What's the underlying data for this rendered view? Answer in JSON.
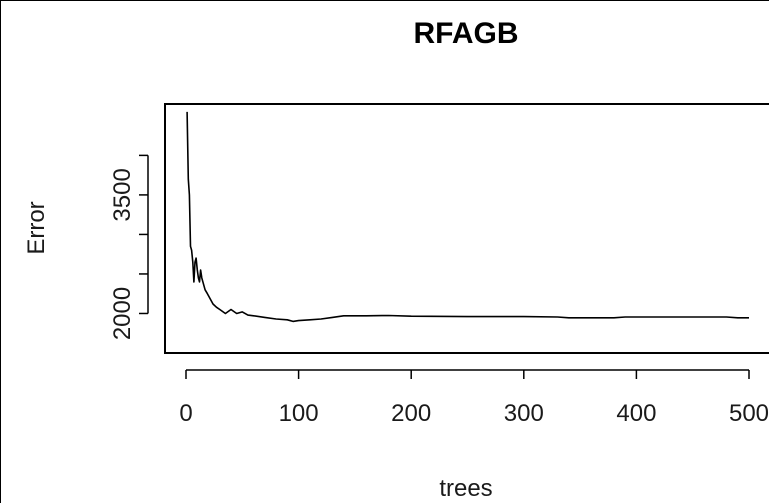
{
  "chart_data": {
    "type": "line",
    "title": "RFAGB",
    "xlabel": "trees",
    "ylabel": "Error",
    "xlim": [
      0,
      500
    ],
    "ylim": [
      1500,
      4650
    ],
    "x_ticks": [
      0,
      100,
      200,
      300,
      400,
      500
    ],
    "x_tick_labels": [
      "0",
      "100",
      "200",
      "300",
      "400",
      "500"
    ],
    "y_ticks": [
      2000,
      2500,
      3000,
      3500,
      4000
    ],
    "y_tick_labels": [
      "2000",
      "",
      "",
      "3500",
      ""
    ],
    "grid": false,
    "legend": "none",
    "series": [
      {
        "color": "#000000",
        "points": [
          [
            1,
            4550
          ],
          [
            2,
            3700
          ],
          [
            3,
            3500
          ],
          [
            4,
            2850
          ],
          [
            5,
            2800
          ],
          [
            6,
            2650
          ],
          [
            7,
            2400
          ],
          [
            8,
            2650
          ],
          [
            9,
            2700
          ],
          [
            10,
            2550
          ],
          [
            11,
            2450
          ],
          [
            12,
            2400
          ],
          [
            13,
            2550
          ],
          [
            14,
            2450
          ],
          [
            15,
            2400
          ],
          [
            17,
            2300
          ],
          [
            19,
            2250
          ],
          [
            21,
            2200
          ],
          [
            24,
            2120
          ],
          [
            27,
            2080
          ],
          [
            30,
            2050
          ],
          [
            35,
            2000
          ],
          [
            40,
            2050
          ],
          [
            45,
            2000
          ],
          [
            50,
            2020
          ],
          [
            55,
            1980
          ],
          [
            60,
            1970
          ],
          [
            70,
            1950
          ],
          [
            80,
            1930
          ],
          [
            90,
            1920
          ],
          [
            95,
            1900
          ],
          [
            100,
            1910
          ],
          [
            110,
            1920
          ],
          [
            120,
            1930
          ],
          [
            130,
            1950
          ],
          [
            140,
            1970
          ],
          [
            160,
            1970
          ],
          [
            180,
            1975
          ],
          [
            200,
            1965
          ],
          [
            250,
            1960
          ],
          [
            300,
            1960
          ],
          [
            330,
            1955
          ],
          [
            340,
            1945
          ],
          [
            380,
            1945
          ],
          [
            390,
            1955
          ],
          [
            420,
            1955
          ],
          [
            450,
            1955
          ],
          [
            480,
            1955
          ],
          [
            490,
            1945
          ],
          [
            500,
            1945
          ]
        ]
      }
    ]
  }
}
